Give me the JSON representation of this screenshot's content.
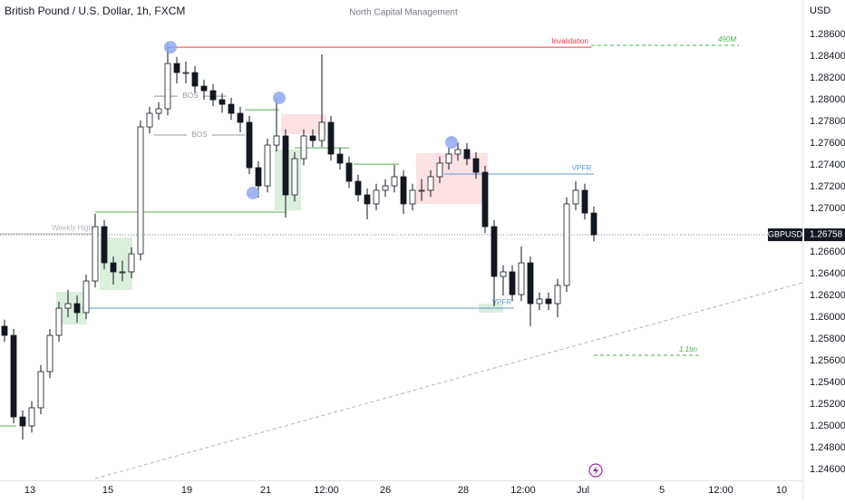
{
  "chart_data": {
    "type": "candlestick",
    "title": "British Pound / U.S. Dollar, 1h, FXCM",
    "watermark": "North Capital Management",
    "currency": "USD",
    "symbol": "GBPUSD",
    "last_price": 1.26758,
    "up_color": "#ffffff",
    "down_color": "#131722",
    "ylim": [
      1.245,
      1.28917
    ],
    "xlim": [
      0,
      442.5
    ],
    "yticks": [
      {
        "value": 1.246,
        "label": "1.24600"
      },
      {
        "value": 1.248,
        "label": "1.24800"
      },
      {
        "value": 1.25,
        "label": "1.25000"
      },
      {
        "value": 1.252,
        "label": "1.25200"
      },
      {
        "value": 1.254,
        "label": "1.25400"
      },
      {
        "value": 1.256,
        "label": "1.25600"
      },
      {
        "value": 1.258,
        "label": "1.25800"
      },
      {
        "value": 1.26,
        "label": "1.26000"
      },
      {
        "value": 1.262,
        "label": "1.26200"
      },
      {
        "value": 1.264,
        "label": "1.26400"
      },
      {
        "value": 1.266,
        "label": "1.26600"
      },
      {
        "value": 1.27,
        "label": "1.27000"
      },
      {
        "value": 1.272,
        "label": "1.27200"
      },
      {
        "value": 1.274,
        "label": "1.27400"
      },
      {
        "value": 1.276,
        "label": "1.27600"
      },
      {
        "value": 1.278,
        "label": "1.27800"
      },
      {
        "value": 1.28,
        "label": "1.28000"
      },
      {
        "value": 1.282,
        "label": "1.28200"
      },
      {
        "value": 1.284,
        "label": "1.28400"
      },
      {
        "value": 1.286,
        "label": "1.28600"
      }
    ],
    "xticks": [
      {
        "value": 16.5,
        "label": "13"
      },
      {
        "value": 59.5,
        "label": "15"
      },
      {
        "value": 103,
        "label": "19"
      },
      {
        "value": 146.5,
        "label": "21"
      },
      {
        "value": 180,
        "label": "12:00"
      },
      {
        "value": 212.5,
        "label": "26"
      },
      {
        "value": 255.5,
        "label": "28"
      },
      {
        "value": 288.5,
        "label": "12:00"
      },
      {
        "value": 321.5,
        "label": "Jul"
      },
      {
        "value": 365,
        "label": "5"
      },
      {
        "value": 397.5,
        "label": "12:00"
      },
      {
        "value": 431,
        "label": "10"
      }
    ],
    "x": [
      2.5,
      7.5,
      12.5,
      17.5,
      22.5,
      27.5,
      32.5,
      37.5,
      42.5,
      47.5,
      52.5,
      57.5,
      62.5,
      67.5,
      72.5,
      77.5,
      82.5,
      87.5,
      92.5,
      97.5,
      102.5,
      107.5,
      112.5,
      117.5,
      122.5,
      127.5,
      132.5,
      137.5,
      142.5,
      147.5,
      152.5,
      157.5,
      162.5,
      167.5,
      172.5,
      177.5,
      182.5,
      187.5,
      192.5,
      197.5,
      202.5,
      207.5,
      212.5,
      217.5,
      222.5,
      227.5,
      232.5,
      237.5,
      242.5,
      247.5,
      252.5,
      257.5,
      262.5,
      267.5,
      272.5,
      277.5,
      282.5,
      287.5,
      292.5,
      297.5,
      302.5,
      307.5,
      312.5,
      317.5,
      322.5,
      327.5
    ],
    "open": [
      1.25917,
      1.25833,
      1.25083,
      1.25,
      1.25167,
      1.255,
      1.25833,
      1.26083,
      1.26125,
      1.26042,
      1.26333,
      1.26833,
      1.265,
      1.26417,
      1.26417,
      1.26583,
      1.2775,
      1.27875,
      1.27917,
      1.28333,
      1.2825,
      1.2825,
      1.28125,
      1.28083,
      1.28,
      1.27958,
      1.27875,
      1.27792,
      1.27375,
      1.27208,
      1.27583,
      1.27667,
      1.27125,
      1.27458,
      1.27667,
      1.27625,
      1.27792,
      1.275,
      1.27417,
      1.2725,
      1.27125,
      1.27042,
      1.27167,
      1.27208,
      1.27292,
      1.27042,
      1.27167,
      1.27167,
      1.27292,
      1.27417,
      1.275,
      1.27542,
      1.27458,
      1.27333,
      1.26833,
      1.26375,
      1.26417,
      1.26208,
      1.265,
      1.26125,
      1.26167,
      1.26125,
      1.26292,
      1.27042,
      1.27167,
      1.26958
    ],
    "high": [
      1.25977,
      1.25893,
      1.25143,
      1.25227,
      1.2556,
      1.25893,
      1.26143,
      1.2625,
      1.262,
      1.26393,
      1.2695,
      1.26893,
      1.2656,
      1.2652,
      1.26643,
      1.2781,
      1.27935,
      1.27977,
      1.28517,
      1.28393,
      1.2835,
      1.2831,
      1.28185,
      1.28143,
      1.2806,
      1.28018,
      1.27935,
      1.27852,
      1.27435,
      1.27643,
      1.28017,
      1.27727,
      1.27518,
      1.27727,
      1.27727,
      1.28417,
      1.27852,
      1.2756,
      1.27477,
      1.2731,
      1.27185,
      1.27227,
      1.27268,
      1.274,
      1.27352,
      1.27227,
      1.2727,
      1.27352,
      1.27477,
      1.2756,
      1.27608,
      1.27602,
      1.27518,
      1.27393,
      1.26893,
      1.26477,
      1.26477,
      1.2665,
      1.2656,
      1.26227,
      1.26227,
      1.26352,
      1.27102,
      1.2725,
      1.27227,
      1.27018
    ],
    "low": [
      1.25773,
      1.25023,
      1.24875,
      1.2494,
      1.25107,
      1.2544,
      1.25773,
      1.26,
      1.2595,
      1.25982,
      1.26273,
      1.2644,
      1.263,
      1.2633,
      1.26357,
      1.26523,
      1.2769,
      1.27815,
      1.27857,
      1.2815,
      1.2815,
      1.28065,
      1.28,
      1.2794,
      1.2788,
      1.27815,
      1.277,
      1.27315,
      1.271,
      1.27148,
      1.27523,
      1.26917,
      1.27065,
      1.27398,
      1.27565,
      1.27565,
      1.2744,
      1.27357,
      1.2719,
      1.27065,
      1.269,
      1.26982,
      1.27107,
      1.27148,
      1.2695,
      1.26982,
      1.2707,
      1.27107,
      1.27232,
      1.27357,
      1.2744,
      1.27398,
      1.27273,
      1.26773,
      1.261,
      1.262,
      1.26148,
      1.26148,
      1.25917,
      1.26065,
      1.26065,
      1.26,
      1.26232,
      1.26982,
      1.26898,
      1.26698
    ],
    "close": [
      1.25833,
      1.25083,
      1.25,
      1.25167,
      1.255,
      1.25833,
      1.26083,
      1.26125,
      1.26042,
      1.26333,
      1.26833,
      1.265,
      1.26417,
      1.26417,
      1.26583,
      1.2775,
      1.27875,
      1.27917,
      1.28333,
      1.2825,
      1.2825,
      1.28125,
      1.28083,
      1.28,
      1.27958,
      1.27875,
      1.27792,
      1.27375,
      1.27208,
      1.27583,
      1.27667,
      1.27125,
      1.27458,
      1.27667,
      1.27625,
      1.27792,
      1.275,
      1.27417,
      1.2725,
      1.27125,
      1.27042,
      1.27167,
      1.27208,
      1.27292,
      1.27042,
      1.27167,
      1.27167,
      1.27292,
      1.27417,
      1.275,
      1.27542,
      1.27458,
      1.27333,
      1.26833,
      1.26375,
      1.26417,
      1.26208,
      1.265,
      1.26125,
      1.26167,
      1.26125,
      1.26292,
      1.27042,
      1.27167,
      1.26958,
      1.26758
    ],
    "zones": [
      {
        "x": [
          31,
          47.5
        ],
        "y": [
          1.26233,
          1.25933
        ],
        "color": "rgba(76,175,80,0.2)"
      },
      {
        "x": [
          55,
          73
        ],
        "y": [
          1.26733,
          1.2625
        ],
        "color": "rgba(76,175,80,0.2)"
      },
      {
        "x": [
          151.5,
          166
        ],
        "y": [
          1.27542,
          1.26983
        ],
        "color": "rgba(76,175,80,0.2)"
      },
      {
        "x": [
          155,
          180
        ],
        "y": [
          1.27867,
          1.27683
        ],
        "color": "rgba(242,54,69,0.15)"
      },
      {
        "x": [
          229.5,
          269
        ],
        "y": [
          1.27508,
          1.27042
        ],
        "color": "rgba(242,54,69,0.15)"
      },
      {
        "x": [
          264,
          277.5
        ],
        "y": [
          1.26125,
          1.26042
        ],
        "color": "rgba(76,175,80,0.2)"
      }
    ],
    "levels": [
      {
        "label": "Invalidation",
        "x": [
          92.5,
          326
        ],
        "value": 1.28483,
        "color": "#f23645",
        "dashed": false
      },
      {
        "label": "490M",
        "x": [
          326,
          407.5
        ],
        "value": 1.285,
        "color": "#4caf50",
        "dashed": true
      },
      {
        "label": "BOS",
        "x": [
          85,
          125
        ],
        "value": 1.28033,
        "color": "#9598a1",
        "dashed": false,
        "label_position": "center"
      },
      {
        "label": "BOS",
        "x": [
          85,
          135
        ],
        "value": 1.27675,
        "color": "#9598a1",
        "dashed": false,
        "label_position": "center"
      },
      {
        "label": "Weekly High",
        "x": [
          0,
          52.5
        ],
        "value": 1.26767,
        "color": "#b2b5be",
        "dashed": false
      },
      {
        "x": [
          52.5,
          157.5
        ],
        "value": 1.26967,
        "color": "#4caf50",
        "dashed": false
      },
      {
        "x": [
          162.5,
          192.5
        ],
        "value": 1.27558,
        "color": "#4caf50",
        "dashed": false
      },
      {
        "x": [
          195,
          220
        ],
        "value": 1.27408,
        "color": "#4caf50",
        "dashed": false
      },
      {
        "x": [
          135,
          154
        ],
        "value": 1.27908,
        "color": "#4caf50",
        "dashed": false
      },
      {
        "x": [
          0,
          9
        ],
        "value": 1.25,
        "color": "#4caf50",
        "dashed": false
      },
      {
        "label": "VPFR",
        "x": [
          45,
          283.5
        ],
        "value": 1.26083,
        "color": "#5b9bd5",
        "dashed": false
      },
      {
        "label": "VPFR",
        "x": [
          245,
          327.5
        ],
        "value": 1.27317,
        "color": "#5b9bd5",
        "dashed": false
      },
      {
        "label": "1.1bn",
        "x": [
          327.5,
          386
        ],
        "value": 1.2565,
        "color": "#4caf50",
        "dashed": true
      }
    ],
    "points": [
      {
        "x": 94,
        "value": 1.28483
      },
      {
        "x": 154,
        "value": 1.28017
      },
      {
        "x": 139.5,
        "value": 1.27142
      },
      {
        "x": 249,
        "value": 1.27608
      }
    ],
    "point_color": "#8fa8f0",
    "trendline": {
      "x": [
        52.5,
        442.5
      ],
      "y": [
        1.24517,
        1.26317
      ],
      "color": "#b2b5be"
    }
  }
}
